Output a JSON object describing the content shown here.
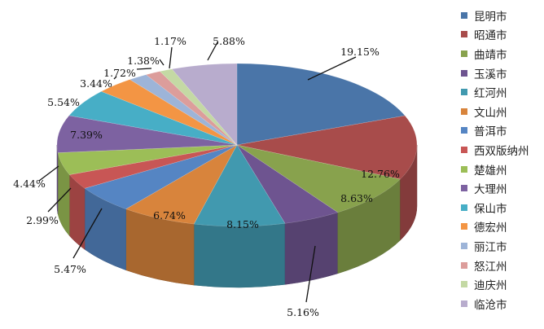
{
  "chart_data": {
    "type": "pie",
    "style": "3d",
    "legend": "right",
    "categories": [
      "昆明市",
      "昭通市",
      "曲靖市",
      "玉溪市",
      "红河州",
      "文山州",
      "普洱市",
      "西双版纳州",
      "楚雄州",
      "大理州",
      "保山市",
      "德宏州",
      "丽江市",
      "怒江州",
      "迪庆州",
      "临沧市"
    ],
    "values": [
      19.15,
      12.76,
      8.63,
      5.16,
      8.15,
      6.74,
      5.47,
      2.99,
      4.44,
      7.39,
      5.54,
      3.44,
      1.72,
      1.38,
      1.17,
      5.88
    ],
    "labels": [
      "19.15%",
      "12.76%",
      "8.63%",
      "5.16%",
      "8.15%",
      "6.74%",
      "5.47%",
      "2.99%",
      "4.44%",
      "7.39%",
      "5.54%",
      "3.44%",
      "1.72%",
      "1.38%",
      "1.17%",
      "5.88%"
    ],
    "colors": [
      "#4A75A8",
      "#A84C4B",
      "#88A24D",
      "#6E5490",
      "#4199AF",
      "#D8843C",
      "#5585C3",
      "#C85655",
      "#9CBE57",
      "#7D62A1",
      "#47AEC6",
      "#F39544",
      "#9DB4D8",
      "#DC9D9B",
      "#C4D9A4",
      "#B8ACCD"
    ]
  }
}
